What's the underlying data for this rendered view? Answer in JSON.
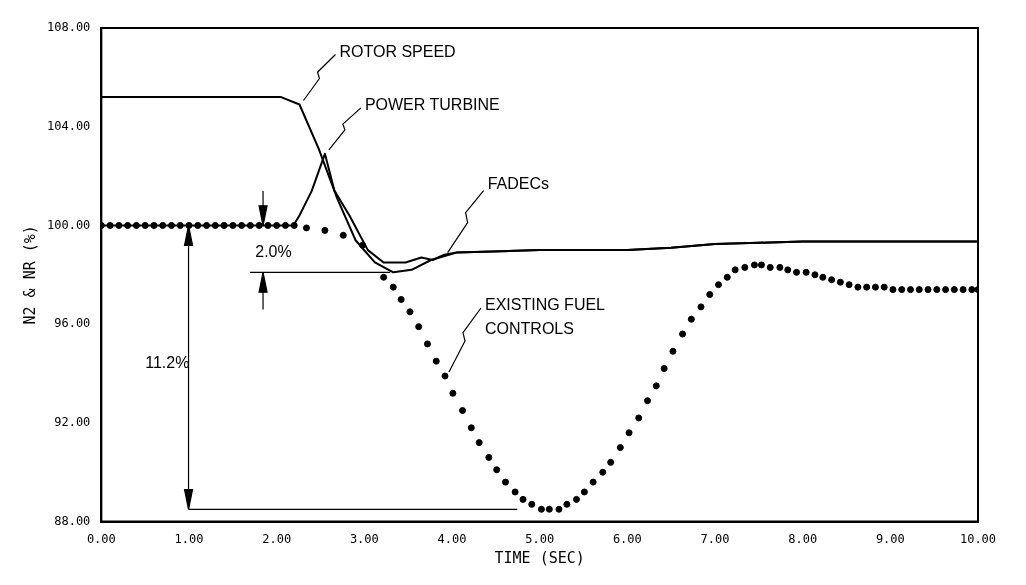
{
  "chart_data": {
    "type": "line",
    "xlabel": "TIME (SEC)",
    "ylabel": "N2 & NR (%)",
    "xlim": [
      0,
      10
    ],
    "ylim": [
      88,
      108
    ],
    "xticks": [
      {
        "value": 0,
        "label": "0.00"
      },
      {
        "value": 1,
        "label": "1.00"
      },
      {
        "value": 2,
        "label": "2.00"
      },
      {
        "value": 3,
        "label": "3.00"
      },
      {
        "value": 4,
        "label": "4.00"
      },
      {
        "value": 5,
        "label": "5.00"
      },
      {
        "value": 6,
        "label": "6.00"
      },
      {
        "value": 7,
        "label": "7.00"
      },
      {
        "value": 8,
        "label": "8.00"
      },
      {
        "value": 9,
        "label": "9.00"
      },
      {
        "value": 10,
        "label": "10.00"
      }
    ],
    "yticks": [
      {
        "value": 88,
        "label": "88.00"
      },
      {
        "value": 92,
        "label": "92.00"
      },
      {
        "value": 96,
        "label": "96.00"
      },
      {
        "value": 100,
        "label": "100.00"
      },
      {
        "value": 104,
        "label": "104.00"
      },
      {
        "value": 108,
        "label": "108.00"
      }
    ],
    "grid": false,
    "legend": false,
    "marker": "none",
    "line_style": "solid",
    "series": [
      {
        "name": "ROTOR SPEED",
        "color": "#000000",
        "x": [
          0,
          1,
          2.05,
          2.26,
          2.48,
          2.69,
          2.9,
          3.12,
          3.33,
          3.54,
          3.76,
          4.05,
          5,
          6,
          6.5,
          7,
          7.5,
          8,
          9,
          10
        ],
        "values": [
          105.2,
          105.2,
          105.2,
          104.9,
          103.1,
          101.1,
          99.4,
          98.5,
          98.1,
          98.2,
          98.6,
          98.9,
          99,
          99,
          99.1,
          99.25,
          99.3,
          99.35,
          99.35,
          99.35
        ]
      },
      {
        "name": "POWER TURBINE",
        "color": "#000000",
        "x": [
          0,
          1,
          2.19,
          2.26,
          2.4,
          2.55,
          2.66,
          2.83,
          3.04,
          3.22,
          3.47,
          3.65,
          3.78,
          3.9,
          4.05,
          5,
          6,
          6.5,
          7,
          7.5,
          8,
          9,
          10
        ],
        "values": [
          100,
          100,
          100,
          100.4,
          101.4,
          102.9,
          101.4,
          100.4,
          99,
          98.5,
          98.5,
          98.7,
          98.6,
          98.8,
          98.9,
          99,
          99,
          99.1,
          99.25,
          99.3,
          99.35,
          99.35,
          99.35
        ]
      },
      {
        "name": "EXISTING FUEL CONTROLS",
        "type": "scatter",
        "marker": "circle",
        "color": "#000000",
        "x": [
          0,
          0.1,
          0.2,
          0.3,
          0.4,
          0.5,
          0.6,
          0.7,
          0.8,
          0.9,
          1,
          1.1,
          1.2,
          1.3,
          1.4,
          1.5,
          1.6,
          1.7,
          1.8,
          1.9,
          2,
          2.1,
          2.2,
          2.34,
          2.55,
          2.76,
          2.98,
          3.22,
          3.33,
          3.42,
          3.52,
          3.62,
          3.72,
          3.82,
          3.92,
          4.01,
          4.12,
          4.22,
          4.31,
          4.42,
          4.51,
          4.61,
          4.72,
          4.81,
          4.91,
          5.02,
          5.11,
          5.22,
          5.31,
          5.42,
          5.51,
          5.61,
          5.72,
          5.81,
          5.92,
          6.02,
          6.13,
          6.23,
          6.33,
          6.42,
          6.52,
          6.63,
          6.73,
          6.84,
          6.94,
          7.04,
          7.14,
          7.23,
          7.34,
          7.45,
          7.53,
          7.63,
          7.74,
          7.83,
          7.93,
          8.04,
          8.14,
          8.23,
          8.33,
          8.43,
          8.53,
          8.63,
          8.73,
          8.83,
          8.93,
          9.03,
          9.13,
          9.23,
          9.33,
          9.43,
          9.53,
          9.63,
          9.73,
          9.83,
          9.93,
          10
        ],
        "values": [
          100,
          100,
          100,
          100,
          100,
          100,
          100,
          100,
          100,
          100,
          100,
          100,
          100,
          100,
          100,
          100,
          100,
          100,
          100,
          100,
          100,
          100,
          100,
          99.9,
          99.8,
          99.6,
          99.2,
          97.9,
          97.5,
          97,
          96.5,
          95.9,
          95.2,
          94.5,
          93.9,
          93.2,
          92.5,
          91.8,
          91.2,
          90.6,
          90.1,
          89.6,
          89.2,
          88.9,
          88.7,
          88.5,
          88.5,
          88.5,
          88.7,
          88.9,
          89.2,
          89.6,
          90,
          90.4,
          91,
          91.6,
          92.2,
          92.9,
          93.5,
          94.2,
          94.9,
          95.6,
          96.2,
          96.7,
          97.2,
          97.6,
          97.9,
          98.2,
          98.3,
          98.4,
          98.4,
          98.3,
          98.3,
          98.2,
          98.1,
          98.1,
          98,
          97.9,
          97.8,
          97.7,
          97.6,
          97.5,
          97.5,
          97.5,
          97.5,
          97.4,
          97.4,
          97.4,
          97.4,
          97.4,
          97.4,
          97.4,
          97.4,
          97.4,
          97.4,
          97.4
        ]
      }
    ],
    "annotations": [
      {
        "text": "FADECs",
        "x": 3.95,
        "y": 98.9
      },
      {
        "text": "2.0%",
        "x": 3.33,
        "y": 98.1
      },
      "11.2%"
    ]
  }
}
